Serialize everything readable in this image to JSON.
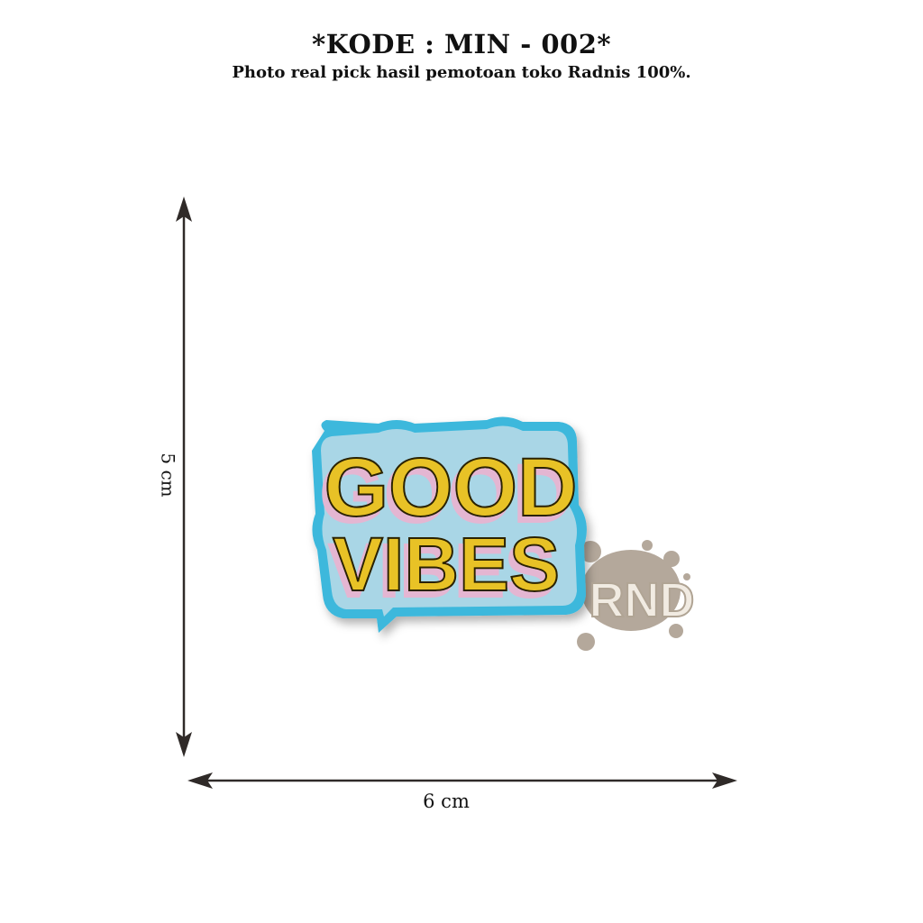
{
  "header": {
    "title": "*KODE : MIN - 002*",
    "subtitle": "Photo real pick hasil pemotoan toko Radnis 100%."
  },
  "dimensions": {
    "height_label": "5 cm",
    "width_label": "6 cm"
  },
  "product": {
    "patch_line1": "GOOD",
    "patch_line2": "VIBES",
    "colors": {
      "border": "#3cb8dc",
      "fabric": "#a9d6e6",
      "letters": "#e8c227",
      "shadow": "#e4b6d2"
    }
  },
  "watermark": {
    "text": "RND"
  }
}
